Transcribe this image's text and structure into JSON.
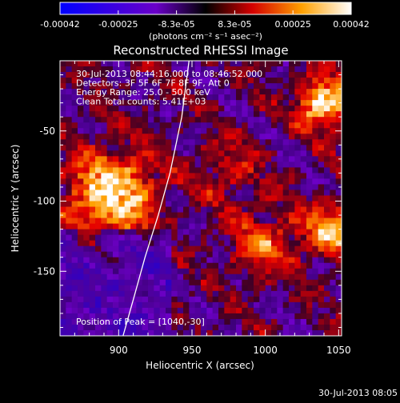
{
  "chart_data": {
    "type": "heatmap",
    "title": "Reconstructed RHESSI Image",
    "xlabel": "Heliocentric X (arcsec)",
    "ylabel": "Heliocentric Y (arcsec)",
    "xlim": [
      860,
      1052
    ],
    "ylim": [
      -196,
      0
    ],
    "xticks": [
      900,
      950,
      1000,
      1050
    ],
    "yticks": [
      -50,
      -100,
      -150
    ],
    "colorbar": {
      "range": [
        -0.00042,
        0.00042
      ],
      "ticks": [
        "-0.00042",
        "-0.00025",
        "-8.3e-05",
        "8.3e-05",
        "0.00025",
        "0.00042"
      ],
      "units_label": "(photons cm⁻² s⁻¹ asec⁻²)"
    },
    "annotations": [
      "30-Jul-2013 08:44:16.000 to 08:46:52.000",
      "Detectors: 3F 5F 6F 7F 8F 9F, Att 0",
      "Energy Range: 25.0 - 50.0 keV",
      "Clean     Total counts: 5.41E+03"
    ],
    "peak_label": "Position of Peak = [1040,-30]",
    "limb": {
      "x": [
        903,
        910,
        918,
        927,
        935,
        943,
        948
      ],
      "y": [
        -196,
        -170,
        -140,
        -110,
        -80,
        -40,
        0
      ]
    },
    "sources": [
      {
        "x": 895,
        "y": -95,
        "amp": 0.0004,
        "sigma": 20
      },
      {
        "x": 1040,
        "y": -30,
        "amp": 0.00042,
        "sigma": 12
      },
      {
        "x": 1045,
        "y": -120,
        "amp": 0.00035,
        "sigma": 12
      },
      {
        "x": 1000,
        "y": -130,
        "amp": 0.0002,
        "sigma": 15
      },
      {
        "x": 975,
        "y": -80,
        "amp": 0.00012,
        "sigma": 15
      }
    ],
    "colors": {
      "neg": "#0000ff",
      "mid": "#000000",
      "pos_low": "#ff0000",
      "pos_mid": "#ffa000",
      "pos_high": "#ffffff"
    }
  },
  "footer": {
    "timestamp": "30-Jul-2013 08:05"
  }
}
